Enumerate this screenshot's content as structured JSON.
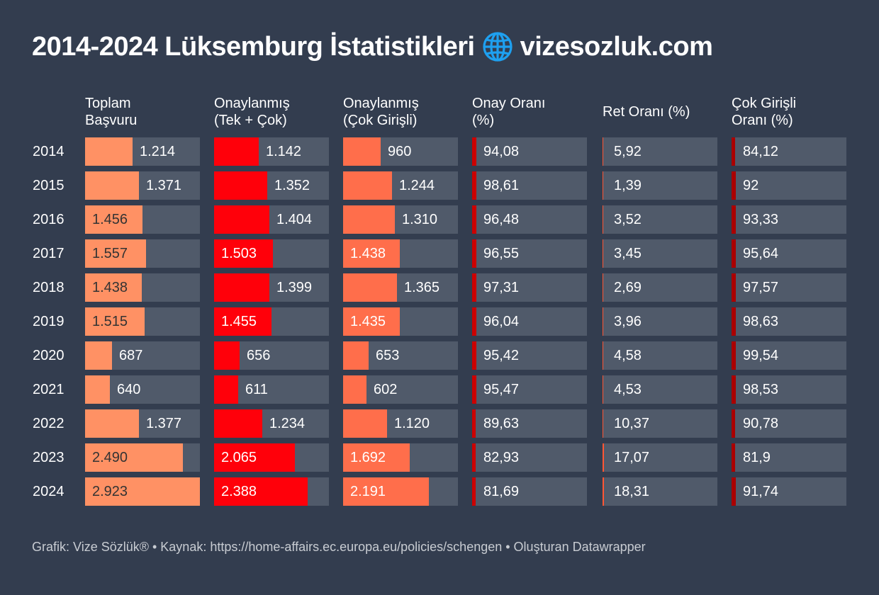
{
  "title": {
    "text": "2014-2024 Lüksemburg İstatistikleri",
    "site": "vizesozluk.com",
    "icon": "globe-icon",
    "icon_color": "#1ea0f0"
  },
  "footer": "Grafik: Vize Sözlük® • Kaynak: https://home-affairs.ec.europa.eu/policies/schengen • Oluşturan Datawrapper",
  "chart_data": {
    "type": "table",
    "title": "2014-2024 Lüksemburg İstatistikleri",
    "columns": [
      {
        "key": "total",
        "label": "Toplam\nBaşvuru",
        "kind": "bar",
        "color": "#ff9164",
        "max": 2923
      },
      {
        "key": "approved",
        "label": "Onaylanmış\n(Tek + Çok)",
        "kind": "bar",
        "color": "#ff000a",
        "max": 2923
      },
      {
        "key": "multi",
        "label": "Onaylanmış\n(Çok Girişli)",
        "kind": "bar",
        "color": "#ff6e4b",
        "max": 2923
      },
      {
        "key": "approval_rate",
        "label": "Onay Oranı\n(%)",
        "kind": "pct",
        "color": "#cc0000",
        "max": 100
      },
      {
        "key": "refusal_rate",
        "label": "Ret Oranı (%)",
        "kind": "pct",
        "color": "#ff5533",
        "max": 100
      },
      {
        "key": "multi_rate",
        "label": "Çok Girişli\nOranı (%)",
        "kind": "pct",
        "color": "#aa0000",
        "max": 100
      }
    ],
    "rows": [
      {
        "year": "2014",
        "total": 1214,
        "total_label": "1.214",
        "approved": 1142,
        "approved_label": "1.142",
        "multi": 960,
        "multi_label": "960",
        "approval_rate": 94.08,
        "approval_rate_label": "94,08",
        "refusal_rate": 5.92,
        "refusal_rate_label": "5,92",
        "multi_rate": 84.12,
        "multi_rate_label": "84,12"
      },
      {
        "year": "2015",
        "total": 1371,
        "total_label": "1.371",
        "approved": 1352,
        "approved_label": "1.352",
        "multi": 1244,
        "multi_label": "1.244",
        "approval_rate": 98.61,
        "approval_rate_label": "98,61",
        "refusal_rate": 1.39,
        "refusal_rate_label": "1,39",
        "multi_rate": 92,
        "multi_rate_label": "92"
      },
      {
        "year": "2016",
        "total": 1456,
        "total_label": "1.456",
        "approved": 1404,
        "approved_label": "1.404",
        "multi": 1310,
        "multi_label": "1.310",
        "approval_rate": 96.48,
        "approval_rate_label": "96,48",
        "refusal_rate": 3.52,
        "refusal_rate_label": "3,52",
        "multi_rate": 93.33,
        "multi_rate_label": "93,33"
      },
      {
        "year": "2017",
        "total": 1557,
        "total_label": "1.557",
        "approved": 1503,
        "approved_label": "1.503",
        "multi": 1438,
        "multi_label": "1.438",
        "approval_rate": 96.55,
        "approval_rate_label": "96,55",
        "refusal_rate": 3.45,
        "refusal_rate_label": "3,45",
        "multi_rate": 95.64,
        "multi_rate_label": "95,64"
      },
      {
        "year": "2018",
        "total": 1438,
        "total_label": "1.438",
        "approved": 1399,
        "approved_label": "1.399",
        "multi": 1365,
        "multi_label": "1.365",
        "approval_rate": 97.31,
        "approval_rate_label": "97,31",
        "refusal_rate": 2.69,
        "refusal_rate_label": "2,69",
        "multi_rate": 97.57,
        "multi_rate_label": "97,57"
      },
      {
        "year": "2019",
        "total": 1515,
        "total_label": "1.515",
        "approved": 1455,
        "approved_label": "1.455",
        "multi": 1435,
        "multi_label": "1.435",
        "approval_rate": 96.04,
        "approval_rate_label": "96,04",
        "refusal_rate": 3.96,
        "refusal_rate_label": "3,96",
        "multi_rate": 98.63,
        "multi_rate_label": "98,63"
      },
      {
        "year": "2020",
        "total": 687,
        "total_label": "687",
        "approved": 656,
        "approved_label": "656",
        "multi": 653,
        "multi_label": "653",
        "approval_rate": 95.42,
        "approval_rate_label": "95,42",
        "refusal_rate": 4.58,
        "refusal_rate_label": "4,58",
        "multi_rate": 99.54,
        "multi_rate_label": "99,54"
      },
      {
        "year": "2021",
        "total": 640,
        "total_label": "640",
        "approved": 611,
        "approved_label": "611",
        "multi": 602,
        "multi_label": "602",
        "approval_rate": 95.47,
        "approval_rate_label": "95,47",
        "refusal_rate": 4.53,
        "refusal_rate_label": "4,53",
        "multi_rate": 98.53,
        "multi_rate_label": "98,53"
      },
      {
        "year": "2022",
        "total": 1377,
        "total_label": "1.377",
        "approved": 1234,
        "approved_label": "1.234",
        "multi": 1120,
        "multi_label": "1.120",
        "approval_rate": 89.63,
        "approval_rate_label": "89,63",
        "refusal_rate": 10.37,
        "refusal_rate_label": "10,37",
        "multi_rate": 90.78,
        "multi_rate_label": "90,78"
      },
      {
        "year": "2023",
        "total": 2490,
        "total_label": "2.490",
        "approved": 2065,
        "approved_label": "2.065",
        "multi": 1692,
        "multi_label": "1.692",
        "approval_rate": 82.93,
        "approval_rate_label": "82,93",
        "refusal_rate": 17.07,
        "refusal_rate_label": "17,07",
        "multi_rate": 81.9,
        "multi_rate_label": "81,9"
      },
      {
        "year": "2024",
        "total": 2923,
        "total_label": "2.923",
        "approved": 2388,
        "approved_label": "2.388",
        "multi": 2191,
        "multi_label": "2.191",
        "approval_rate": 81.69,
        "approval_rate_label": "81,69",
        "refusal_rate": 18.31,
        "refusal_rate_label": "18,31",
        "multi_rate": 91.74,
        "multi_rate_label": "91,74"
      }
    ]
  }
}
